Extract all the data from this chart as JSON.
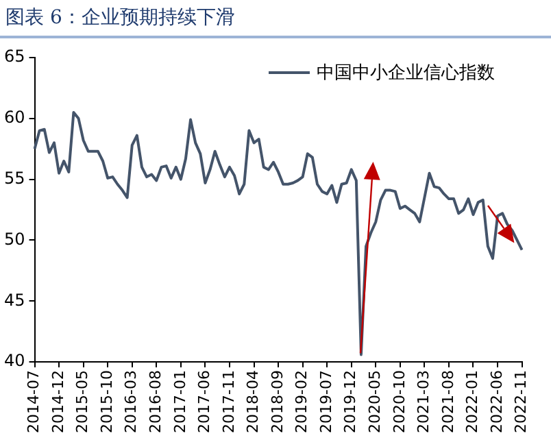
{
  "chart_data": {
    "type": "line",
    "title": "图表 6：企业预期持续下滑",
    "categories": [
      "2014-07",
      null,
      null,
      null,
      null,
      "2014-12",
      null,
      null,
      null,
      null,
      "2015-05",
      null,
      null,
      null,
      null,
      "2015-10",
      null,
      null,
      null,
      null,
      "2016-03",
      null,
      null,
      null,
      null,
      "2016-08",
      null,
      null,
      null,
      null,
      "2017-01",
      null,
      null,
      null,
      null,
      "2017-06",
      null,
      null,
      null,
      null,
      "2017-11",
      null,
      null,
      null,
      null,
      "2018-04",
      null,
      null,
      null,
      null,
      "2018-09",
      null,
      null,
      null,
      null,
      "2019-02",
      null,
      null,
      null,
      null,
      "2019-07",
      null,
      null,
      null,
      null,
      "2019-12",
      null,
      null,
      null,
      null,
      "2020-05",
      null,
      null,
      null,
      null,
      "2020-10",
      null,
      null,
      null,
      null,
      "2021-03",
      null,
      null,
      null,
      null,
      "2021-08",
      null,
      null,
      null,
      null,
      "2022-01",
      null,
      null,
      null,
      null,
      "2022-06",
      null,
      null,
      null,
      null,
      "2022-11"
    ],
    "series": [
      {
        "name": "中国中小企业信心指数",
        "color": "#44546a",
        "values": [
          57.5,
          59.0,
          59.1,
          57.2,
          58.0,
          55.5,
          56.5,
          55.6,
          60.5,
          60.0,
          58.2,
          57.3,
          57.3,
          57.3,
          56.5,
          55.1,
          55.2,
          54.6,
          54.1,
          53.5,
          57.8,
          58.6,
          56.0,
          55.2,
          55.4,
          54.9,
          56.0,
          56.1,
          55.1,
          56.0,
          55.0,
          56.7,
          59.9,
          58.0,
          57.1,
          54.7,
          55.8,
          57.3,
          56.2,
          55.2,
          56.0,
          55.3,
          53.8,
          54.6,
          59.0,
          58.0,
          58.3,
          56.0,
          55.8,
          56.4,
          55.6,
          54.6,
          54.6,
          54.7,
          54.9,
          55.2,
          57.1,
          56.8,
          54.6,
          54.0,
          53.8,
          54.5,
          53.1,
          54.6,
          54.7,
          55.8,
          54.9,
          40.6,
          49.5,
          50.6,
          51.5,
          53.3,
          54.1,
          54.1,
          54.0,
          52.6,
          52.8,
          52.5,
          52.2,
          51.5,
          53.5,
          55.5,
          54.4,
          54.3,
          53.8,
          53.4,
          53.4,
          52.2,
          52.5,
          53.4,
          52.1,
          53.1,
          53.3,
          49.5,
          48.5,
          52.0,
          52.2,
          51.3,
          50.8,
          50.0,
          49.2
        ]
      }
    ],
    "ylim": [
      40,
      65
    ],
    "yticks": [
      40,
      45,
      50,
      55,
      60,
      65
    ],
    "grid": false,
    "legend": "top right",
    "marker": "none",
    "line_style": "solid"
  }
}
